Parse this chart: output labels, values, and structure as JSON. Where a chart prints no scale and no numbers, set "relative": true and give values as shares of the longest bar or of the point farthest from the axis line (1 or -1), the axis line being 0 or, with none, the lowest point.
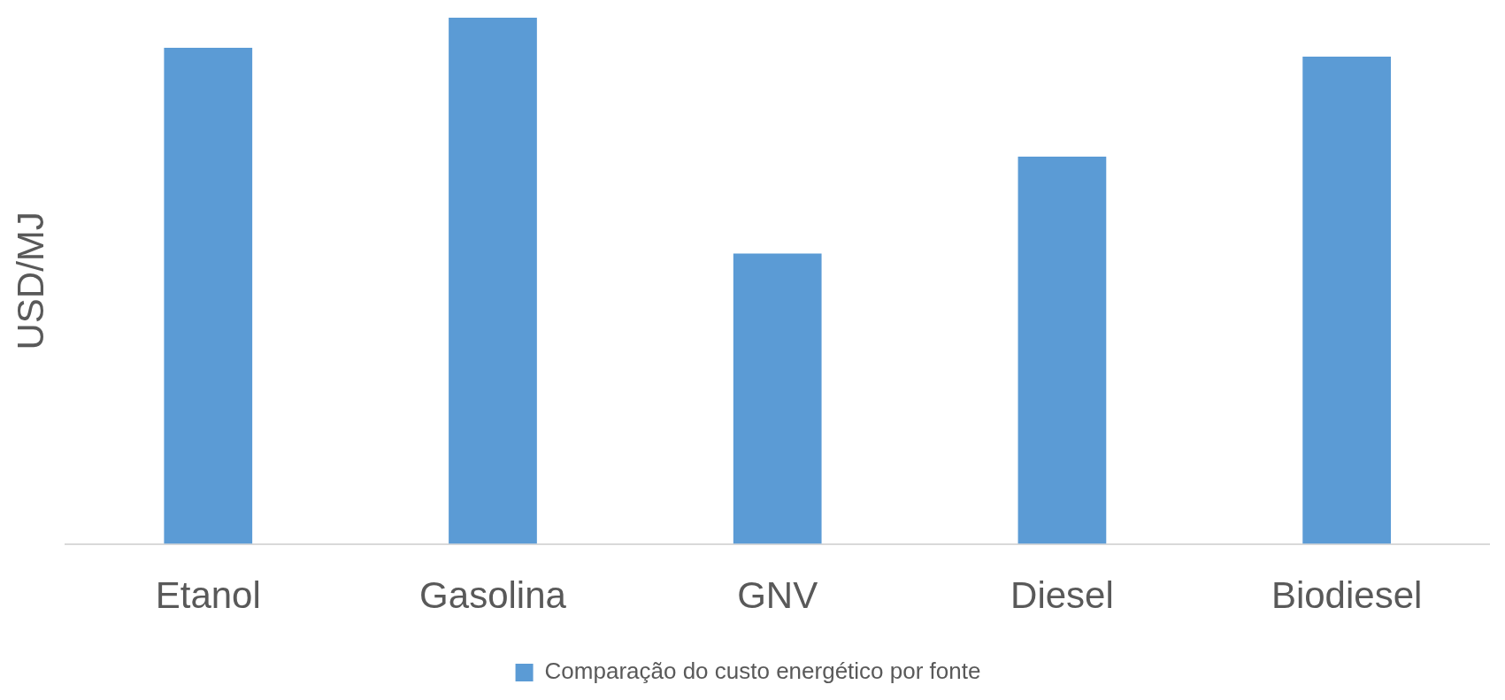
{
  "chart_data": {
    "type": "bar",
    "ylabel": "USD/MJ",
    "relative": true,
    "categories": [
      "Etanol",
      "Gasolina",
      "GNV",
      "Diesel",
      "Biodiesel"
    ],
    "series": [
      {
        "name": "Comparação do custo energético por fonte",
        "color": "#5b9bd5",
        "values": [
          0.943,
          1,
          0.552,
          0.736,
          0.926
        ]
      }
    ],
    "legend": "bottom",
    "grid": false
  }
}
